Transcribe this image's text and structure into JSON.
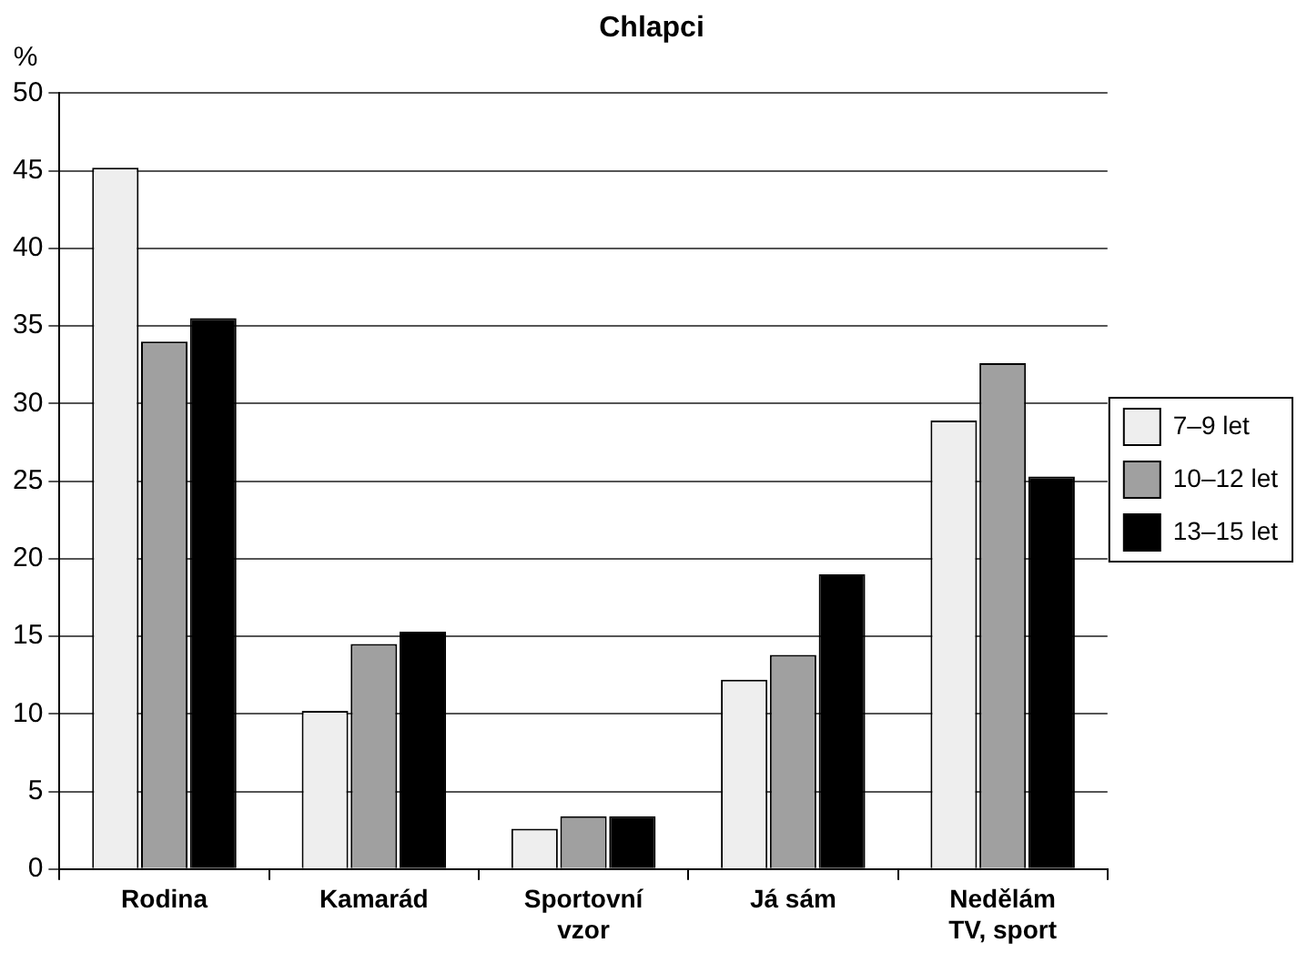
{
  "chart_data": {
    "type": "bar",
    "title": "Chlapci",
    "ylabel": "%",
    "categories": [
      "Rodina",
      "Kamarád",
      "Sportovní\nvzor",
      "Já sám",
      "Nedělám\nTV, sport"
    ],
    "series": [
      {
        "name": "7–9 let",
        "color": "#eeeeee",
        "values": [
          45.2,
          10.2,
          2.6,
          12.2,
          28.9
        ]
      },
      {
        "name": "10–12 let",
        "color": "#a0a0a0",
        "values": [
          34.0,
          14.5,
          3.4,
          13.8,
          32.6
        ]
      },
      {
        "name": "13–15 let",
        "color": "#000000",
        "values": [
          35.5,
          15.3,
          3.4,
          19.0,
          25.3
        ]
      }
    ],
    "ylim": [
      0,
      50
    ],
    "yticks": [
      0,
      5,
      10,
      15,
      20,
      25,
      30,
      35,
      40,
      45,
      50
    ],
    "grid": "y",
    "legend": "right"
  }
}
